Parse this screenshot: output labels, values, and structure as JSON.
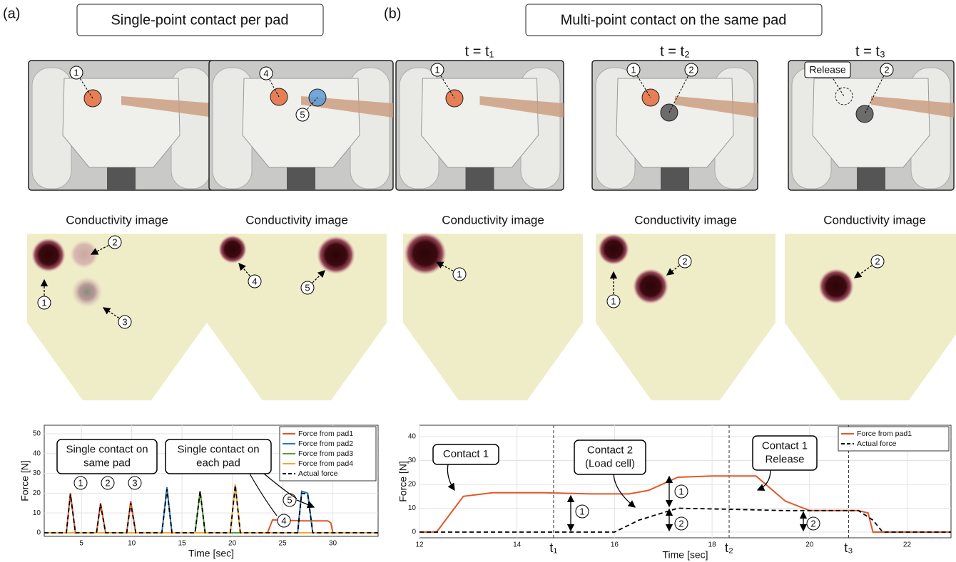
{
  "panels": [
    "(a)",
    "(b)"
  ],
  "headers": [
    "Single-point contact per pad",
    "Multi-point contact on the same pad"
  ],
  "time_labels": [
    "t = t₁",
    "t = t₂",
    "t = t₃"
  ],
  "photos": [
    {
      "labels": [
        "1"
      ]
    },
    {
      "labels": [
        "4",
        "5"
      ]
    },
    {
      "labels": [
        "1"
      ]
    },
    {
      "labels": [
        "1",
        "2"
      ]
    },
    {
      "labels": [
        "Release",
        "2"
      ]
    }
  ],
  "conductivity": [
    {
      "title": "Conductivity image",
      "labels": [
        "1",
        "2",
        "3"
      ]
    },
    {
      "title": "Conductivity image",
      "labels": [
        "4",
        "5"
      ]
    },
    {
      "title": "Conductivity image",
      "labels": [
        "1"
      ]
    },
    {
      "title": "Conductivity image",
      "labels": [
        "1",
        "2"
      ]
    },
    {
      "title": "Conductivity image",
      "labels": [
        "2"
      ]
    }
  ],
  "chart_data": [
    {
      "type": "line",
      "xlabel": "Time [sec]",
      "ylabel": "Force [N]",
      "xlim": [
        1.3,
        34.5
      ],
      "ylim": [
        -1.8,
        54.3
      ],
      "xticks": [
        5,
        10,
        15,
        20,
        25,
        30
      ],
      "yticks": [
        0,
        10,
        20,
        30,
        40,
        50
      ],
      "grid": true,
      "legend": "upper right",
      "series": [
        {
          "name": "Force from pad1",
          "color": "#e2572a",
          "dashed": false,
          "x": [
            1.3,
            3.5,
            3.9,
            4.4,
            6.5,
            6.9,
            7.4,
            9.5,
            9.9,
            10.4,
            23.5,
            24,
            27,
            29.5,
            29.8,
            30,
            34.5
          ],
          "values": [
            0,
            0,
            20,
            0,
            0,
            15,
            0,
            0,
            16,
            0,
            0,
            6.5,
            6,
            6,
            5,
            0,
            0
          ]
        },
        {
          "name": "Force from pad2",
          "color": "#2a7bbf",
          "dashed": false,
          "x": [
            1.3,
            13,
            13.5,
            14,
            26.5,
            26.9,
            27.5,
            28,
            34.5
          ],
          "values": [
            0,
            0,
            23,
            0,
            0,
            21,
            20,
            0,
            0
          ]
        },
        {
          "name": "Force from pad3",
          "color": "#5a9e2f",
          "dashed": false,
          "x": [
            1.3,
            16.3,
            16.8,
            17.3,
            34.5
          ],
          "values": [
            0,
            0,
            21,
            0,
            0
          ]
        },
        {
          "name": "Force from pad4",
          "color": "#f0a830",
          "dashed": false,
          "x": [
            1.3,
            19.8,
            20.3,
            20.8,
            34.5
          ],
          "values": [
            0,
            0,
            24.5,
            0,
            0
          ]
        },
        {
          "name": "Actual force",
          "color": "#000000",
          "dashed": true,
          "x": [
            1.3,
            3.5,
            3.9,
            4.4,
            6.5,
            6.9,
            7.4,
            9.5,
            9.9,
            10.4,
            13,
            13.5,
            14,
            16.3,
            16.8,
            17.3,
            19.8,
            20.3,
            20.8,
            26.5,
            26.9,
            27.5,
            28,
            34.5
          ],
          "values": [
            0,
            0,
            19.5,
            0,
            0,
            14.5,
            0,
            0,
            15,
            0,
            0,
            22,
            0,
            0,
            21,
            0,
            0,
            24,
            0,
            0,
            20,
            19.5,
            0,
            0
          ]
        }
      ],
      "annotations": [
        {
          "lines": [
            "Single contact on",
            "same pad"
          ]
        },
        {
          "lines": [
            "Single contact on",
            "each pad"
          ]
        }
      ],
      "circled": [
        "1",
        "2",
        "3",
        "4",
        "5"
      ]
    },
    {
      "type": "line",
      "xlabel": "Time [sec]",
      "ylabel": "Force [N]",
      "xlim": [
        12,
        22.9
      ],
      "ylim": [
        -2.4,
        44.8
      ],
      "xticks": [
        12,
        14,
        16,
        18,
        20,
        22
      ],
      "yticks": [
        0,
        10,
        20,
        30,
        40
      ],
      "grid": true,
      "legend": "upper right",
      "series": [
        {
          "name": "Force from pad1",
          "color": "#e2572a",
          "dashed": false,
          "x": [
            12,
            12.35,
            12.9,
            13.5,
            14.5,
            15.5,
            16.3,
            16.7,
            17.3,
            18,
            18.9,
            19.5,
            20,
            21,
            21.2,
            21.3,
            22.9
          ],
          "values": [
            0,
            0,
            15,
            16.5,
            16.5,
            16,
            16,
            17.5,
            23,
            23.5,
            23.5,
            13,
            9,
            9,
            8,
            0,
            0
          ]
        },
        {
          "name": "Actual force",
          "color": "#000000",
          "dashed": true,
          "x": [
            12,
            16,
            16.5,
            17.3,
            18.5,
            19.5,
            21,
            21.3,
            21.5,
            22.9
          ],
          "values": [
            0,
            0,
            5,
            10,
            9.5,
            9,
            9,
            5,
            0,
            0
          ]
        }
      ],
      "markers": [
        {
          "value": 14.75,
          "label": "t₁"
        },
        {
          "value": 18.35,
          "label": "t₂"
        },
        {
          "value": 20.8,
          "label": "t₃"
        }
      ],
      "annotations": [
        {
          "lines": [
            "Contact 1"
          ]
        },
        {
          "lines": [
            "Contact 2",
            "(Load cell)"
          ]
        },
        {
          "lines": [
            "Contact 1",
            "Release"
          ]
        }
      ],
      "circled": [
        "1",
        "1",
        "2",
        "2"
      ]
    }
  ]
}
